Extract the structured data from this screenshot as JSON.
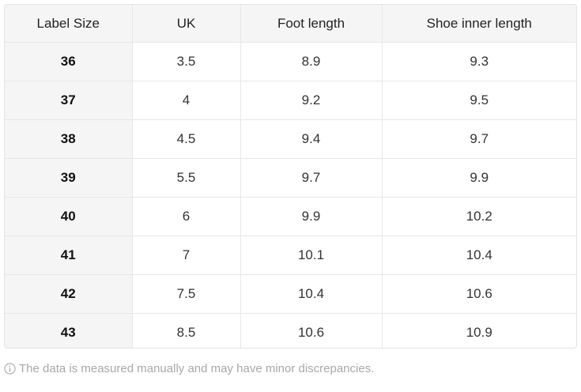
{
  "table": {
    "headers": [
      "Label Size",
      "UK",
      "Foot length",
      "Shoe inner length"
    ],
    "rows": [
      [
        "36",
        "3.5",
        "8.9",
        "9.3"
      ],
      [
        "37",
        "4",
        "9.2",
        "9.5"
      ],
      [
        "38",
        "4.5",
        "9.4",
        "9.7"
      ],
      [
        "39",
        "5.5",
        "9.7",
        "9.9"
      ],
      [
        "40",
        "6",
        "9.9",
        "10.2"
      ],
      [
        "41",
        "7",
        "10.1",
        "10.4"
      ],
      [
        "42",
        "7.5",
        "10.4",
        "10.6"
      ],
      [
        "43",
        "8.5",
        "10.6",
        "10.9"
      ]
    ]
  },
  "note": {
    "icon": "info-icon",
    "text": "The data is measured manually and may have minor discrepancies."
  }
}
